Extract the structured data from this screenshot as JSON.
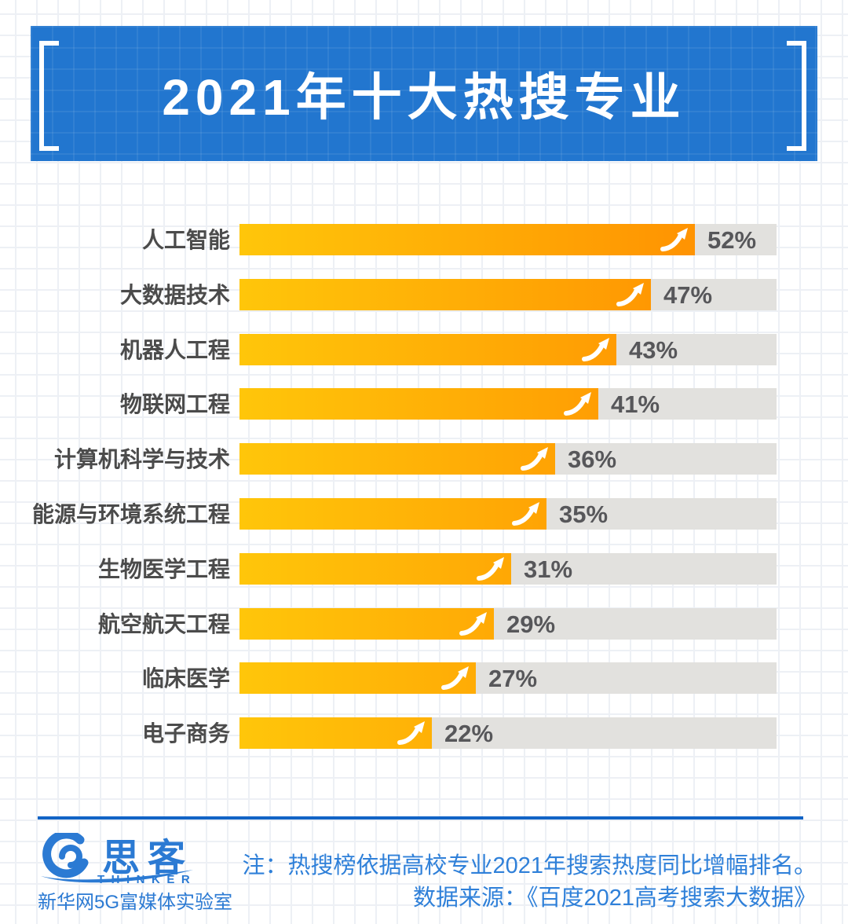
{
  "header": {
    "title": "2021年十大热搜专业",
    "bg_color": "#2276cf",
    "bracket_color": "#ffffff"
  },
  "chart_data": {
    "type": "bar",
    "orientation": "horizontal",
    "title": "2021年十大热搜专业",
    "categories": [
      "人工智能",
      "大数据技术",
      "机器人工程",
      "物联网工程",
      "计算机科学与技术",
      "能源与环境系统工程",
      "生物医学工程",
      "航空航天工程",
      "临床医学",
      "电子商务"
    ],
    "values": [
      52,
      47,
      43,
      41,
      36,
      35,
      31,
      29,
      27,
      22
    ],
    "value_labels": [
      "52%",
      "47%",
      "43%",
      "41%",
      "36%",
      "35%",
      "31%",
      "29%",
      "27%",
      "22%"
    ],
    "unit": "%",
    "xlim": [
      0,
      61.3
    ],
    "grid": false,
    "legend": false,
    "bar_gradient_start": "#ffc60a",
    "bar_gradient_end": "#ff8a00",
    "track_color": "#e2e1de",
    "label_color": "#4b4b4b",
    "value_color": "#57575a",
    "bar_end_icon": "trend-up-arrow"
  },
  "footer": {
    "divider_color": "#1264c6",
    "logo": {
      "brand": "思客",
      "brand_sub": "THINKER",
      "org": "新华网5G富媒体实验室",
      "color": "#2b7ad3"
    },
    "note_line1": "注：热搜榜依据高校专业2021年搜索热度同比增幅排名。",
    "note_line2": "数据来源：《百度2021高考搜索大数据》",
    "note_color": "#2f80d9"
  }
}
